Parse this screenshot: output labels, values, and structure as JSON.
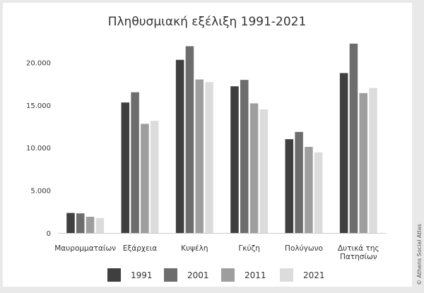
{
  "chart_data": {
    "type": "bar",
    "title": "Πληθυσμιακή εξέλιξη 1991-2021",
    "xlabel": "",
    "ylabel": "",
    "ylim": [
      0,
      25000
    ],
    "yticks": [
      0,
      5000,
      10000,
      15000,
      20000
    ],
    "ytick_labels": [
      "0",
      "5.000",
      "10.000",
      "15.000",
      "20.000"
    ],
    "grid": false,
    "legend_position": "bottom",
    "categories": [
      [
        "Μαυρομματαίων"
      ],
      [
        "Εξάρχεια"
      ],
      [
        "Κυψέλη"
      ],
      [
        "Γκύζη"
      ],
      [
        "Πολύγωνο"
      ],
      [
        "Δυτικά της",
        "Πατησίων"
      ]
    ],
    "series": [
      {
        "name": "1991",
        "color": "#3f3f3f",
        "values": [
          2350,
          15300,
          20300,
          17200,
          11000,
          18750
        ]
      },
      {
        "name": "2001",
        "color": "#6d6d6d",
        "values": [
          2300,
          16500,
          21900,
          17950,
          11850,
          22200
        ]
      },
      {
        "name": "2011",
        "color": "#9e9e9e",
        "values": [
          1900,
          12800,
          18000,
          15200,
          10100,
          16400
        ]
      },
      {
        "name": "2021",
        "color": "#dcdcdc",
        "values": [
          1750,
          13150,
          17700,
          14500,
          9450,
          17000
        ]
      }
    ]
  },
  "credit": "© Athens Social Atlas"
}
